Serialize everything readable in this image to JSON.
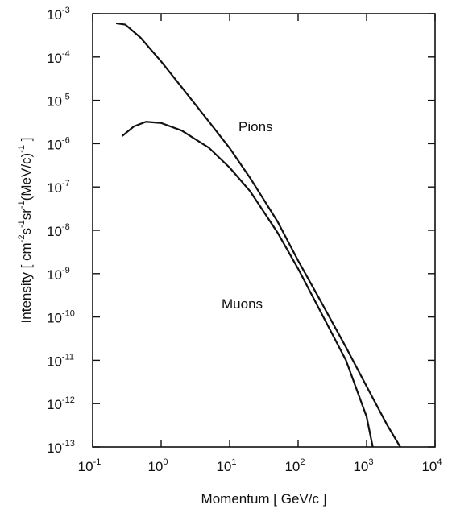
{
  "chart_data": {
    "type": "line",
    "xlabel": "Momentum [ GeV/c ]",
    "ylabel": [
      "Intensity  [ cm",
      "-2",
      "s",
      "-1",
      "sr",
      "-1",
      "(MeV/c)",
      "-1",
      " ]"
    ],
    "xscale": "log",
    "yscale": "log",
    "xlim": [
      0.1,
      10000
    ],
    "ylim": [
      1e-13,
      0.001
    ],
    "xticks": [
      {
        "value": 0.1,
        "label": "10-1"
      },
      {
        "value": 1,
        "label": "100"
      },
      {
        "value": 10,
        "label": "101"
      },
      {
        "value": 100,
        "label": "102"
      },
      {
        "value": 1000,
        "label": "103"
      },
      {
        "value": 10000,
        "label": "104"
      }
    ],
    "yticks": [
      {
        "value": 0.001,
        "label": "10-3"
      },
      {
        "value": 0.0001,
        "label": "10-4"
      },
      {
        "value": 1e-05,
        "label": "10-5"
      },
      {
        "value": 1e-06,
        "label": "10-6"
      },
      {
        "value": 1e-07,
        "label": "10-7"
      },
      {
        "value": 1e-08,
        "label": "10-8"
      },
      {
        "value": 1e-09,
        "label": "10-9"
      },
      {
        "value": 1e-10,
        "label": "10-10"
      },
      {
        "value": 1e-11,
        "label": "10-11"
      },
      {
        "value": 1e-12,
        "label": "10-12"
      },
      {
        "value": 1e-13,
        "label": "10-13"
      }
    ],
    "grid": false,
    "series": [
      {
        "name": "Pions",
        "color": "#111111",
        "x": [
          0.22,
          0.3,
          0.5,
          1,
          2,
          5,
          10,
          20,
          50,
          100,
          200,
          500,
          1000,
          2000,
          3100
        ],
        "values": [
          0.0006,
          0.00056,
          0.00028,
          7.9e-05,
          2e-05,
          3.2e-06,
          7.9e-07,
          1.6e-07,
          1.6e-08,
          2e-09,
          2.8e-10,
          2e-11,
          2.5e-12,
          3.2e-13,
          1e-13
        ]
      },
      {
        "name": "Muons",
        "color": "#111111",
        "x": [
          0.27,
          0.4,
          0.6,
          1,
          2,
          5,
          10,
          20,
          50,
          100,
          200,
          500,
          1000,
          1230
        ],
        "values": [
          1.5e-06,
          2.5e-06,
          3.2e-06,
          3e-06,
          2e-06,
          8e-07,
          2.8e-07,
          7.9e-08,
          8.9e-09,
          1.3e-09,
          1.6e-10,
          1e-11,
          5e-13,
          1e-13
        ]
      }
    ]
  }
}
